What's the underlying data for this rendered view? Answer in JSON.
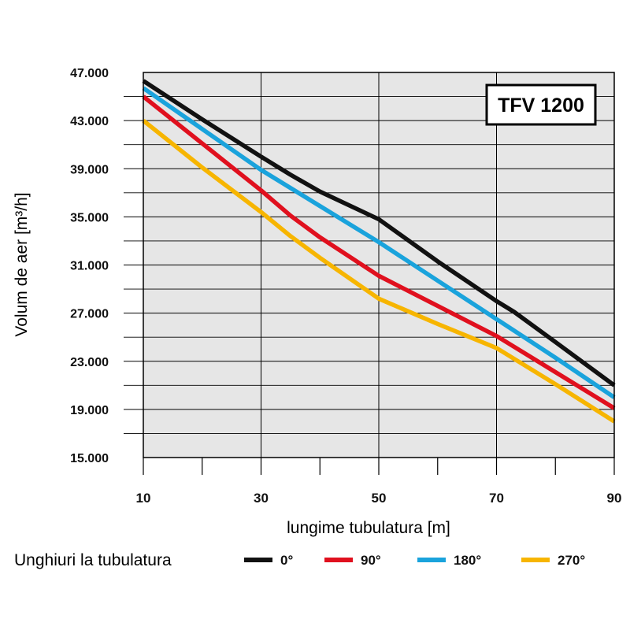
{
  "chart_data": {
    "type": "line",
    "title": "TFV 1200",
    "xlabel": "lungime tubulatura [m]",
    "ylabel": "Volum de aer [m³/h]",
    "xlim": [
      10,
      90
    ],
    "ylim": [
      15000,
      47000
    ],
    "x_ticks": [
      10,
      30,
      50,
      70,
      90
    ],
    "x_tick_labels": [
      "10",
      "30",
      "50",
      "70",
      "90"
    ],
    "y_ticks": [
      15000,
      19000,
      23000,
      27000,
      31000,
      35000,
      39000,
      43000,
      47000
    ],
    "y_tick_labels": [
      "15.000",
      "19.000",
      "23.000",
      "27.000",
      "31.000",
      "35.000",
      "39.000",
      "43.000",
      "47.000"
    ],
    "grid": true,
    "legend_title": "Unghiuri la tubulatura",
    "legend_position": "bottom",
    "series": [
      {
        "name": "0°",
        "color": "#111111",
        "x": [
          10,
          20,
          30,
          35,
          40,
          50,
          60,
          70,
          73,
          80,
          90
        ],
        "y": [
          46300,
          43100,
          40000,
          38500,
          37100,
          34800,
          31300,
          28000,
          27100,
          24600,
          21000
        ]
      },
      {
        "name": "90°",
        "color": "#e0101e",
        "x": [
          10,
          20,
          30,
          35,
          40,
          50,
          60,
          70,
          80,
          90
        ],
        "y": [
          45000,
          41100,
          37200,
          35100,
          33300,
          30100,
          27600,
          25100,
          22100,
          19100
        ]
      },
      {
        "name": "180°",
        "color": "#1aa3dc",
        "x": [
          10,
          20,
          30,
          40,
          50,
          60,
          70,
          80,
          90
        ],
        "y": [
          45700,
          42300,
          38900,
          35900,
          32900,
          29700,
          26500,
          23300,
          20000
        ]
      },
      {
        "name": "270°",
        "color": "#f7b500",
        "x": [
          10,
          20,
          30,
          35,
          40,
          50,
          60,
          70,
          80,
          90
        ],
        "y": [
          43000,
          39100,
          35400,
          33400,
          31600,
          28200,
          26100,
          24100,
          21100,
          18000
        ]
      }
    ]
  }
}
